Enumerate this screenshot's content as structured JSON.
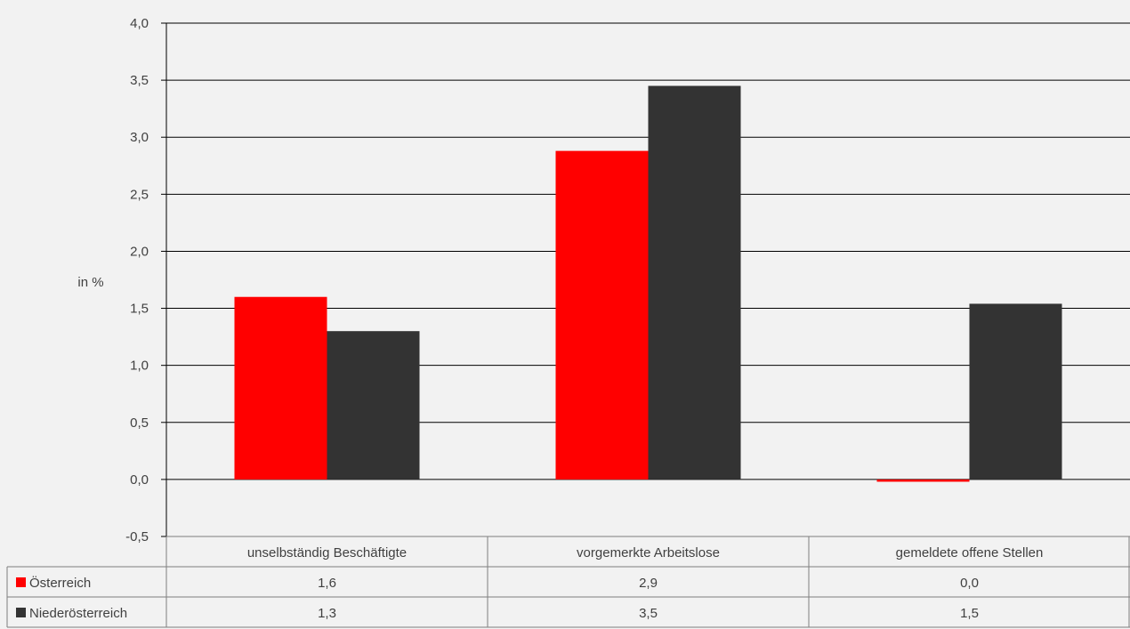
{
  "chart_data": {
    "type": "bar",
    "ylabel": "in %",
    "ylim": [
      -0.5,
      4.0
    ],
    "yticks": [
      "-0,5",
      "0,0",
      "0,5",
      "1,0",
      "1,5",
      "2,0",
      "2,5",
      "3,0",
      "3,5",
      "4,0"
    ],
    "ytick_values": [
      -0.5,
      0.0,
      0.5,
      1.0,
      1.5,
      2.0,
      2.5,
      3.0,
      3.5,
      4.0
    ],
    "grid": true,
    "categories": [
      "unselbständig Beschäftigte",
      "vorgemerkte Arbeitslose",
      "gemeldete offene Stellen"
    ],
    "series": [
      {
        "name": "Österreich",
        "color": "#ff0000",
        "values": [
          1.6,
          2.88,
          -0.02
        ],
        "labels": [
          "1,6",
          "2,9",
          "0,0"
        ]
      },
      {
        "name": "Niederösterreich",
        "color": "#333333",
        "values": [
          1.3,
          3.45,
          1.54
        ],
        "labels": [
          "1,3",
          "3,5",
          "1,5"
        ]
      }
    ],
    "legend": "data-table"
  }
}
